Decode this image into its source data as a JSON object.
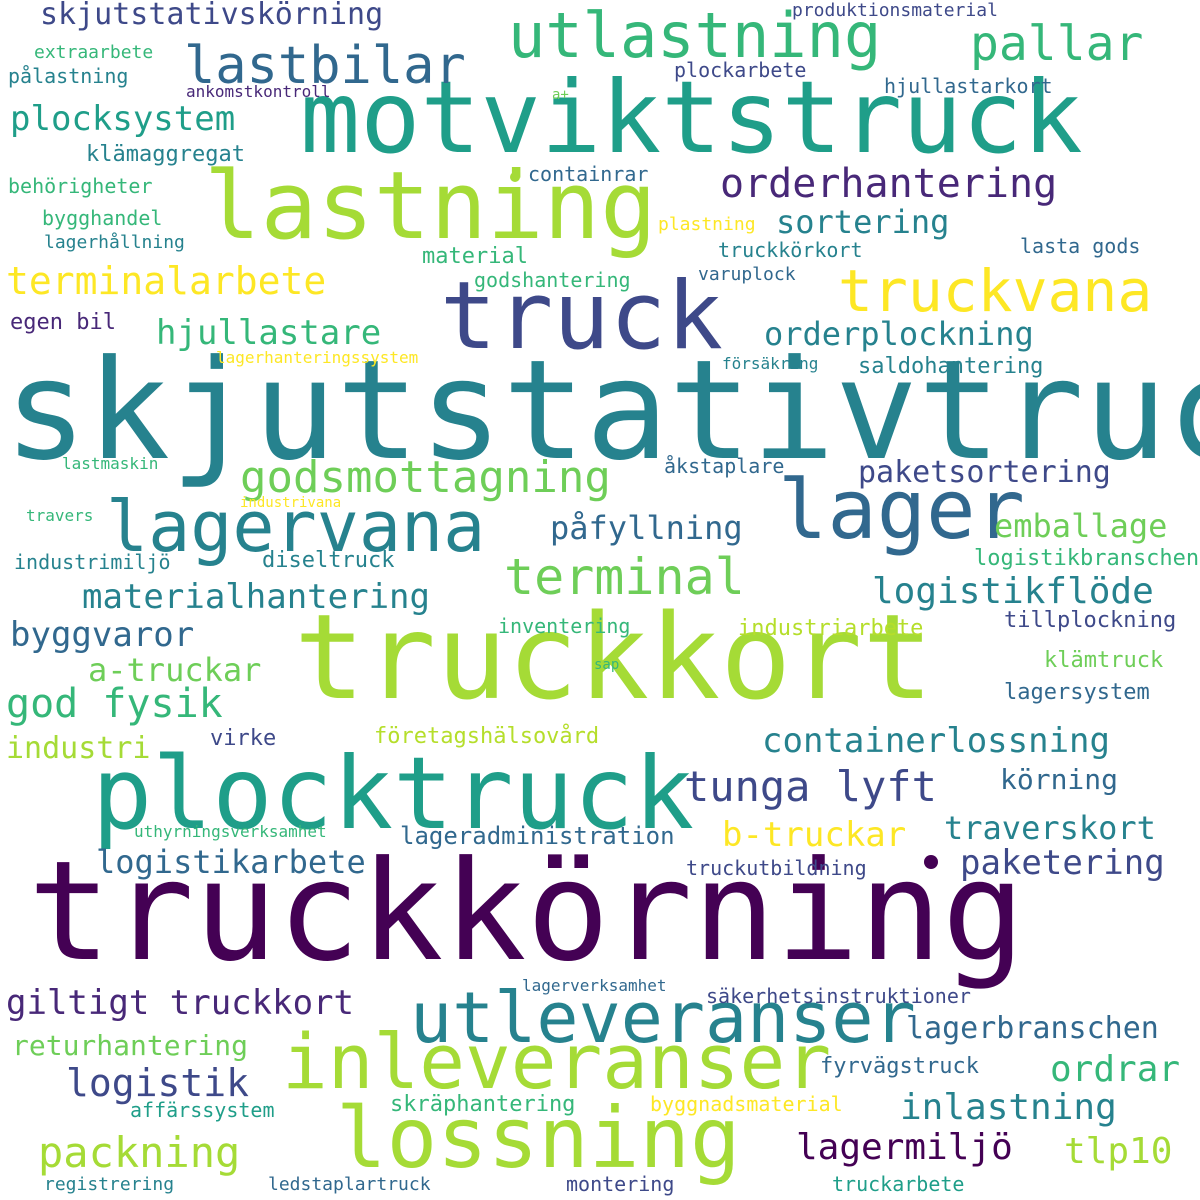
{
  "colors": {
    "dark_purple": "#440154",
    "indigo": "#3e4989",
    "slate_blue": "#31688e",
    "teal_blue": "#26828e",
    "teal": "#1f9e89",
    "green": "#35b779",
    "light_green": "#6ece58",
    "lime": "#b5de2b",
    "yellow": "#fde725",
    "background": "#ffffff"
  },
  "words": [
    {
      "text": "truckkörning",
      "color": "#440154"
    },
    {
      "text": "skjutstativtruck",
      "color": "#26828e"
    },
    {
      "text": "truckkort",
      "color": "#a5db36"
    },
    {
      "text": "motviktstruck",
      "color": "#1f9e89"
    },
    {
      "text": "plocktruck",
      "color": "#1f9e89"
    },
    {
      "text": "lastning",
      "color": "#a5db36"
    },
    {
      "text": "truck",
      "color": "#3e4989"
    },
    {
      "text": "lossning",
      "color": "#a5db36"
    },
    {
      "text": "inleveranser",
      "color": "#a5db36"
    },
    {
      "text": "utleveranser",
      "color": "#26828e"
    },
    {
      "text": "lager",
      "color": "#31688e"
    },
    {
      "text": "lagervana",
      "color": "#26828e"
    },
    {
      "text": "utlastning",
      "color": "#35b779"
    },
    {
      "text": "lastbilar",
      "color": "#31688e"
    },
    {
      "text": "pallar",
      "color": "#35b779"
    },
    {
      "text": "truckvana",
      "color": "#fde725"
    },
    {
      "text": "orderhantering",
      "color": "#482878"
    },
    {
      "text": "godsmottagning",
      "color": "#6ece58"
    },
    {
      "text": "terminal",
      "color": "#6ece58"
    },
    {
      "text": "tunga lyft",
      "color": "#3e4989"
    },
    {
      "text": "terminalarbete",
      "color": "#fde725"
    },
    {
      "text": "plocksystem",
      "color": "#1f9e89"
    },
    {
      "text": "skjutstativskörning",
      "color": "#3e4989"
    },
    {
      "text": "hjullastare",
      "color": "#35b779"
    },
    {
      "text": "orderplockning",
      "color": "#26828e"
    },
    {
      "text": "sortering",
      "color": "#26828e"
    },
    {
      "text": "paketsortering",
      "color": "#3e4989"
    },
    {
      "text": "materialhantering",
      "color": "#26828e"
    },
    {
      "text": "logistikflöde",
      "color": "#26828e"
    },
    {
      "text": "containerlossning",
      "color": "#26828e"
    },
    {
      "text": "god fysik",
      "color": "#35b779"
    },
    {
      "text": "giltigt truckkort",
      "color": "#482878"
    },
    {
      "text": "logistikarbete",
      "color": "#31688e"
    },
    {
      "text": "paketering",
      "color": "#3e4989"
    },
    {
      "text": "lagerbranschen",
      "color": "#31688e"
    },
    {
      "text": "b-truckar",
      "color": "#fde725"
    },
    {
      "text": "traverskort",
      "color": "#26828e"
    },
    {
      "text": "påfyllning",
      "color": "#31688e"
    },
    {
      "text": "emballage",
      "color": "#6ece58"
    },
    {
      "text": "byggvaror",
      "color": "#31688e"
    },
    {
      "text": "a-truckar",
      "color": "#6ece58"
    },
    {
      "text": "industri",
      "color": "#a5db36"
    },
    {
      "text": "logistik",
      "color": "#3e4989"
    },
    {
      "text": "ordrar",
      "color": "#35b779"
    },
    {
      "text": "inlastning",
      "color": "#26828e"
    },
    {
      "text": "packning",
      "color": "#a5db36"
    },
    {
      "text": "lagermiljö",
      "color": "#440154"
    },
    {
      "text": "tlp10",
      "color": "#a5db36"
    },
    {
      "text": "körning",
      "color": "#31688e"
    },
    {
      "text": "returhantering",
      "color": "#6ece58"
    },
    {
      "text": "lageradministration",
      "color": "#31688e"
    },
    {
      "text": "truckutbildning",
      "color": "#3e4989"
    },
    {
      "text": "säkerhetsinstruktioner",
      "color": "#3e4989"
    },
    {
      "text": "fyrvägstruck",
      "color": "#31688e"
    },
    {
      "text": "skräphantering",
      "color": "#35b779"
    },
    {
      "text": "byggnadsmaterial",
      "color": "#fde725"
    },
    {
      "text": "affärssystem",
      "color": "#1f9e89"
    },
    {
      "text": "registrering",
      "color": "#26828e"
    },
    {
      "text": "ledstaplartruck",
      "color": "#31688e"
    },
    {
      "text": "montering",
      "color": "#3e4989"
    },
    {
      "text": "truckarbete",
      "color": "#1f9e89"
    },
    {
      "text": "lagerverksamhet",
      "color": "#31688e"
    },
    {
      "text": "uthyrningsverksamhet",
      "color": "#35b779"
    },
    {
      "text": "virke",
      "color": "#3e4989"
    },
    {
      "text": "företagshälsovård",
      "color": "#b5de2b"
    },
    {
      "text": "lagersystem",
      "color": "#31688e"
    },
    {
      "text": "klämtruck",
      "color": "#6ece58"
    },
    {
      "text": "sap",
      "color": "#35b779"
    },
    {
      "text": "industriarbete",
      "color": "#b5de2b"
    },
    {
      "text": "inventering",
      "color": "#35b779"
    },
    {
      "text": "tillplockning",
      "color": "#3e4989"
    },
    {
      "text": "logistikbranschen",
      "color": "#35b779"
    },
    {
      "text": "industrimiljö",
      "color": "#26828e"
    },
    {
      "text": "diseltruck",
      "color": "#26828e"
    },
    {
      "text": "travers",
      "color": "#35b779"
    },
    {
      "text": "industrivana",
      "color": "#fde725"
    },
    {
      "text": "lastmaskin",
      "color": "#35b779"
    },
    {
      "text": "åkstaplare",
      "color": "#31688e"
    },
    {
      "text": "försäkring",
      "color": "#26828e"
    },
    {
      "text": "lagerhanteringssystem",
      "color": "#fde725"
    },
    {
      "text": "saldohantering",
      "color": "#26828e"
    },
    {
      "text": "egen bil",
      "color": "#482878"
    },
    {
      "text": "lagerhållning",
      "color": "#26828e"
    },
    {
      "text": "godshantering",
      "color": "#35b779"
    },
    {
      "text": "material",
      "color": "#35b779"
    },
    {
      "text": "lasta gods",
      "color": "#31688e"
    },
    {
      "text": "varuplock",
      "color": "#31688e"
    },
    {
      "text": "truckkörkort",
      "color": "#26828e"
    },
    {
      "text": "plastning",
      "color": "#fde725"
    },
    {
      "text": "bygghandel",
      "color": "#35b779"
    },
    {
      "text": "behörigheter",
      "color": "#35b779"
    },
    {
      "text": "containrar",
      "color": "#31688e"
    },
    {
      "text": "klämaggregat",
      "color": "#26828e"
    },
    {
      "text": "pålastning",
      "color": "#26828e"
    },
    {
      "text": "extraarbete",
      "color": "#35b779"
    },
    {
      "text": "ankomstkontroll",
      "color": "#482878"
    },
    {
      "text": "a+",
      "color": "#6ece58"
    },
    {
      "text": "plockarbete",
      "color": "#3e4989"
    },
    {
      "text": "hjullastarkort",
      "color": "#31688e"
    },
    {
      "text": "produktionsmaterial",
      "color": "#3e4989"
    }
  ],
  "dots": [
    {
      "name": "dot",
      "color": "#a5db36"
    },
    {
      "name": "dot",
      "color": "#440154"
    }
  ]
}
